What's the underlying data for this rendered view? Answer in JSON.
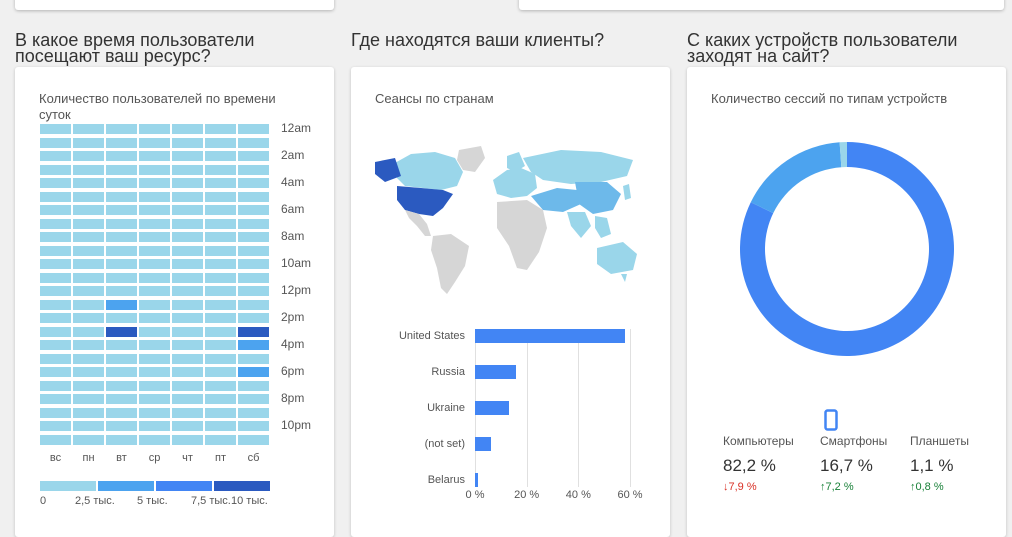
{
  "sections": {
    "time": {
      "title": "В какое время пользователи\nпосещают ваш ресурс?"
    },
    "geo": {
      "title": "Где находятся ваши клиенты?"
    },
    "devices": {
      "title": "С каких устройств пользователи\nзаходят на сайт?"
    }
  },
  "heatmap": {
    "card_title": "Количество пользователей по времени суток",
    "days": [
      "вс",
      "пн",
      "вт",
      "ср",
      "чт",
      "пт",
      "сб"
    ],
    "time_labels": [
      "12am",
      "2am",
      "4am",
      "6am",
      "8am",
      "10am",
      "12pm",
      "2pm",
      "4pm",
      "6pm",
      "8pm",
      "10pm"
    ],
    "levels": {
      "13": {
        "2": 2
      },
      "15": {
        "2": 4,
        "6": 4
      },
      "16": {
        "6": 2
      },
      "18": {
        "6": 2
      }
    },
    "colors": [
      "#9ad6ea",
      "#6db9ea",
      "#4ca3ef",
      "#4285f4",
      "#2b5ac0"
    ],
    "legend": {
      "labels": [
        "0",
        "2,5 тыс.",
        "5 тыс.",
        "7,5 тыс.",
        "10 тыс."
      ],
      "colors": [
        "#9ad6ea",
        "#4ca3ef",
        "#4285f4",
        "#2b5ac0"
      ]
    }
  },
  "geo": {
    "card_title": "Сеансы по странам",
    "map_colors": {
      "default": "#d6d6d6",
      "light": "#9ad6ea",
      "medium": "#6db9ea",
      "dark": "#2b5ac0"
    }
  },
  "chart_data": {
    "type": "bar",
    "orientation": "horizontal",
    "categories": [
      "United States",
      "Russia",
      "Ukraine",
      "(not set)",
      "Belarus"
    ],
    "values": [
      58,
      16,
      13,
      6,
      1
    ],
    "xticks": [
      "0 %",
      "20 %",
      "40 %",
      "60 %"
    ],
    "xlim": [
      0,
      60
    ],
    "color": "#4285f4",
    "grid": true
  },
  "devices": {
    "card_title": "Количество сессий по типам устройств",
    "donut": [
      {
        "label": "Компьютеры",
        "value": 82.2,
        "color": "#4285f4"
      },
      {
        "label": "Смартфоны",
        "value": 16.7,
        "color": "#4ca3ef"
      },
      {
        "label": "Планшеты",
        "value": 1.1,
        "color": "#9ad6ea"
      }
    ],
    "items": [
      {
        "name": "Компьютеры",
        "value": "82,2 %",
        "change": "↓7,9 %",
        "dir": "down"
      },
      {
        "name": "Смартфоны",
        "value": "16,7 %",
        "change": "↑7,2 %",
        "dir": "up"
      },
      {
        "name": "Планшеты",
        "value": "1,1 %",
        "change": "↑0,8 %",
        "dir": "up"
      }
    ],
    "active_icon": "smartphone-icon"
  }
}
